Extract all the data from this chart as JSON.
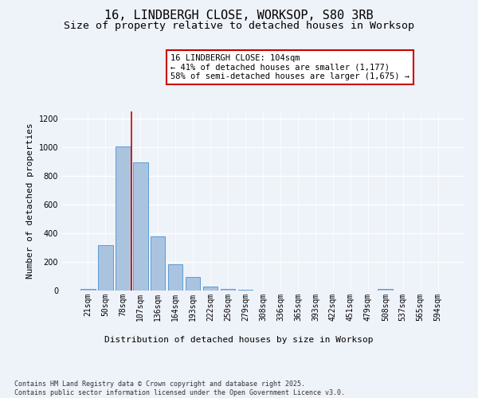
{
  "title_line1": "16, LINDBERGH CLOSE, WORKSOP, S80 3RB",
  "title_line2": "Size of property relative to detached houses in Worksop",
  "xlabel": "Distribution of detached houses by size in Worksop",
  "ylabel": "Number of detached properties",
  "categories": [
    "21sqm",
    "50sqm",
    "78sqm",
    "107sqm",
    "136sqm",
    "164sqm",
    "193sqm",
    "222sqm",
    "250sqm",
    "279sqm",
    "308sqm",
    "336sqm",
    "365sqm",
    "393sqm",
    "422sqm",
    "451sqm",
    "479sqm",
    "508sqm",
    "537sqm",
    "565sqm",
    "594sqm"
  ],
  "values": [
    10,
    315,
    1005,
    895,
    380,
    185,
    95,
    28,
    12,
    5,
    2,
    2,
    2,
    2,
    2,
    2,
    2,
    10,
    2,
    2,
    2
  ],
  "bar_color": "#aac4e0",
  "bar_edge_color": "#5b9bd5",
  "vline_index": 2,
  "annotation_text": "16 LINDBERGH CLOSE: 104sqm\n← 41% of detached houses are smaller (1,177)\n58% of semi-detached houses are larger (1,675) →",
  "annotation_box_color": "#ffffff",
  "annotation_box_edge_color": "#cc0000",
  "vline_color": "#cc0000",
  "ylim": [
    0,
    1250
  ],
  "yticks": [
    0,
    200,
    400,
    600,
    800,
    1000,
    1200
  ],
  "background_color": "#eef2f9",
  "footer_text": "Contains HM Land Registry data © Crown copyright and database right 2025.\nContains public sector information licensed under the Open Government Licence v3.0.",
  "title_fontsize": 11,
  "subtitle_fontsize": 9.5,
  "axis_label_fontsize": 8,
  "tick_fontsize": 7,
  "annotation_fontsize": 7.5,
  "footer_fontsize": 6
}
